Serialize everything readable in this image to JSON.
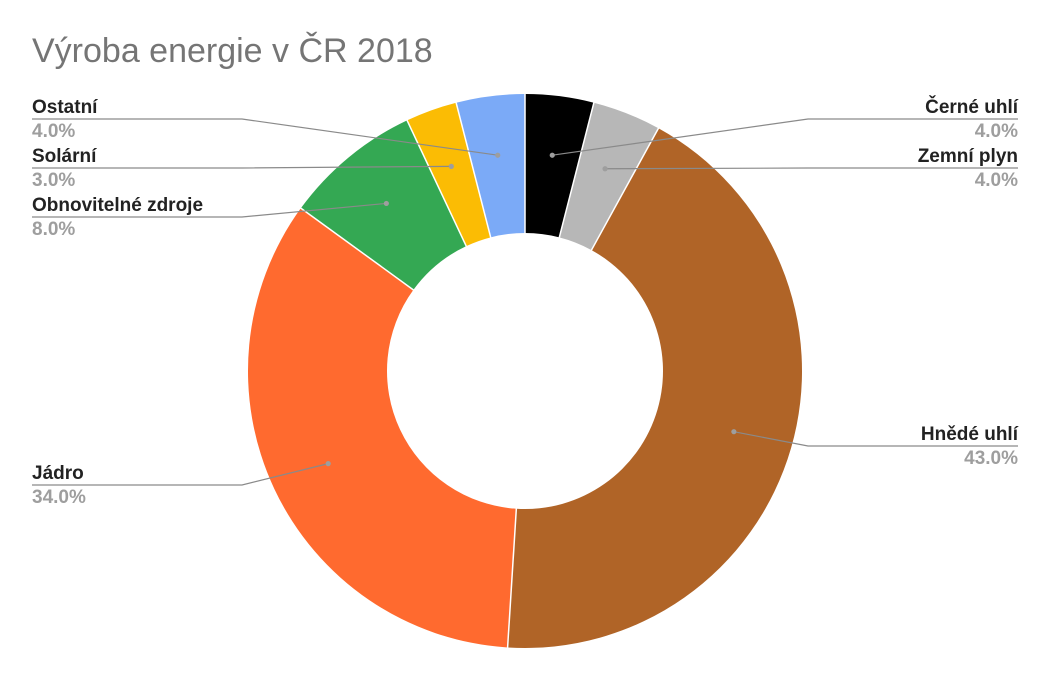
{
  "chart_data": {
    "type": "pie",
    "donut": true,
    "title": "Výroba energie v ČR 2018",
    "legend": "none",
    "slices": [
      {
        "label": "Černé uhlí",
        "value": 4.0,
        "display": "4.0%",
        "color": "#000000"
      },
      {
        "label": "Zemní plyn",
        "value": 4.0,
        "display": "4.0%",
        "color": "#b7b7b7"
      },
      {
        "label": "Hnědé uhlí",
        "value": 43.0,
        "display": "43.0%",
        "color": "#b06427"
      },
      {
        "label": "Jádro",
        "value": 34.0,
        "display": "34.0%",
        "color": "#ff6a2f"
      },
      {
        "label": "Obnovitelné zdroje",
        "value": 8.0,
        "display": "8.0%",
        "color": "#34a853"
      },
      {
        "label": "Solární",
        "value": 3.0,
        "display": "3.0%",
        "color": "#fbbc04"
      },
      {
        "label": "Ostatní",
        "value": 4.0,
        "display": "4.0%",
        "color": "#7baaf7"
      }
    ]
  }
}
